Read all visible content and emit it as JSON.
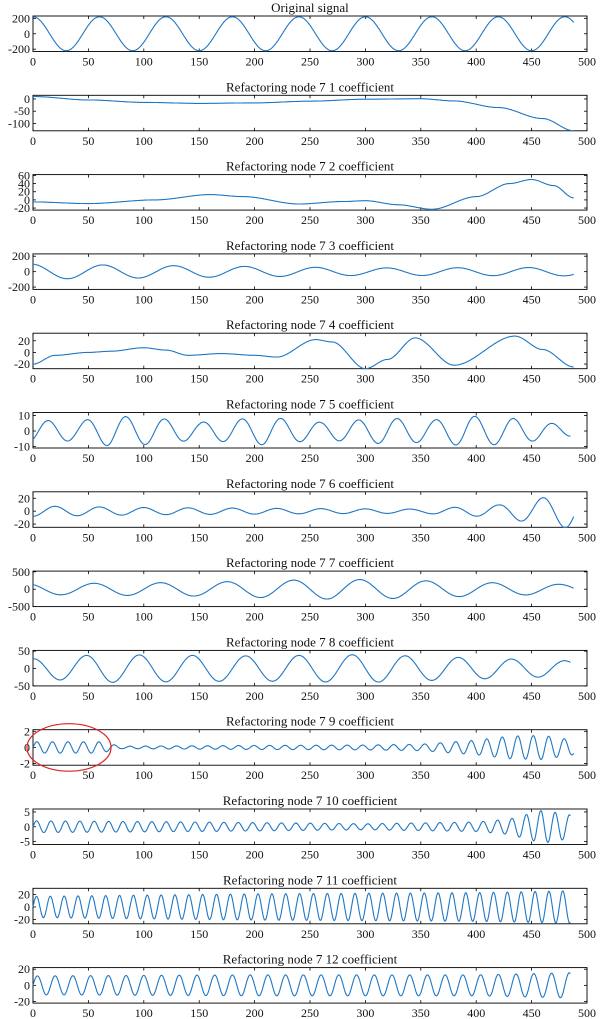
{
  "colors": {
    "line": "#1f77c4",
    "annotation": "#e02020",
    "axis": "#000000"
  },
  "chart_data": [
    {
      "type": "line",
      "title": "Original signal",
      "xlim": [
        0,
        500
      ],
      "xticks": [
        0,
        50,
        100,
        150,
        200,
        250,
        300,
        350,
        400,
        450,
        500
      ],
      "yticks": [
        200,
        0,
        -200
      ],
      "ylim": [
        -230,
        230
      ],
      "series": [
        {
          "x_end": 488,
          "components": [
            [
              220,
              60,
              0,
              -15
            ]
          ]
        }
      ]
    },
    {
      "type": "line",
      "title": "Refactoring node 7 1 coefficient",
      "xlim": [
        0,
        500
      ],
      "xticks": [
        0,
        50,
        100,
        150,
        200,
        250,
        300,
        350,
        400,
        450,
        500
      ],
      "yticks": [
        0,
        -50,
        -100
      ],
      "ylim": [
        -130,
        15
      ],
      "series": [
        {
          "x_end": 488,
          "points": [
            [
              0,
              10
            ],
            [
              50,
              -4
            ],
            [
              100,
              -14
            ],
            [
              150,
              -18
            ],
            [
              200,
              -16
            ],
            [
              250,
              -9
            ],
            [
              300,
              -1
            ],
            [
              350,
              1
            ],
            [
              380,
              -8
            ],
            [
              420,
              -35
            ],
            [
              460,
              -80
            ],
            [
              488,
              -130
            ]
          ]
        }
      ]
    },
    {
      "type": "line",
      "title": "Refactoring node 7 2 coefficient",
      "xlim": [
        0,
        500
      ],
      "xticks": [
        0,
        50,
        100,
        150,
        200,
        250,
        300,
        350,
        400,
        450,
        500
      ],
      "yticks": [
        60,
        40,
        20,
        0,
        -20
      ],
      "ylim": [
        -25,
        62
      ],
      "series": [
        {
          "x_end": 488,
          "points": [
            [
              0,
              -5
            ],
            [
              50,
              -9
            ],
            [
              110,
              0
            ],
            [
              160,
              13
            ],
            [
              190,
              8
            ],
            [
              240,
              -10
            ],
            [
              280,
              -4
            ],
            [
              300,
              -2
            ],
            [
              330,
              -12
            ],
            [
              360,
              -23
            ],
            [
              400,
              8
            ],
            [
              430,
              40
            ],
            [
              450,
              50
            ],
            [
              470,
              35
            ],
            [
              488,
              5
            ]
          ]
        }
      ]
    },
    {
      "type": "line",
      "title": "Refactoring node 7 3 coefficient",
      "xlim": [
        0,
        500
      ],
      "xticks": [
        0,
        50,
        100,
        150,
        200,
        250,
        300,
        350,
        400,
        450,
        500
      ],
      "yticks": [
        200,
        0,
        -200
      ],
      "ylim": [
        -230,
        230
      ],
      "series": [
        {
          "x_end": 488,
          "components": [
            [
              130,
              64,
              0,
              -20
            ],
            [
              40,
              64,
              0,
              0
            ]
          ],
          "envelope": [
            [
              0,
              0.8
            ],
            [
              200,
              0.55
            ],
            [
              300,
              0.4
            ],
            [
              488,
              0.45
            ]
          ]
        }
      ]
    },
    {
      "type": "line",
      "title": "Refactoring node 7 4 coefficient",
      "xlim": [
        0,
        500
      ],
      "xticks": [
        0,
        50,
        100,
        150,
        200,
        250,
        300,
        350,
        400,
        450,
        500
      ],
      "yticks": [
        20,
        0,
        -20
      ],
      "ylim": [
        -28,
        33
      ],
      "series": [
        {
          "x_end": 488,
          "points": [
            [
              0,
              -20
            ],
            [
              20,
              -5
            ],
            [
              50,
              0
            ],
            [
              70,
              2
            ],
            [
              100,
              8
            ],
            [
              120,
              4
            ],
            [
              140,
              -5
            ],
            [
              170,
              -2
            ],
            [
              200,
              -5
            ],
            [
              220,
              -8
            ],
            [
              255,
              22
            ],
            [
              270,
              18
            ],
            [
              300,
              -28
            ],
            [
              320,
              -12
            ],
            [
              345,
              25
            ],
            [
              380,
              -22
            ],
            [
              435,
              28
            ],
            [
              460,
              5
            ],
            [
              488,
              -25
            ]
          ]
        }
      ]
    },
    {
      "type": "line",
      "title": "Refactoring node 7 5 coefficient",
      "xlim": [
        0,
        500
      ],
      "xticks": [
        0,
        50,
        100,
        150,
        200,
        250,
        300,
        350,
        400,
        450,
        500
      ],
      "yticks": [
        10,
        0,
        -10
      ],
      "ylim": [
        -11,
        12
      ],
      "series": [
        {
          "x_end": 485,
          "components": [
            [
              7,
              35,
              0,
              5
            ]
          ],
          "envelope": [
            [
              0,
              1.0
            ],
            [
              40,
              0.9
            ],
            [
              70,
              1.4
            ],
            [
              110,
              1.2
            ],
            [
              150,
              0.8
            ],
            [
              210,
              1.3
            ],
            [
              260,
              0.8
            ],
            [
              320,
              1.2
            ],
            [
              360,
              1.0
            ],
            [
              390,
              1.4
            ],
            [
              430,
              1.2
            ],
            [
              485,
              0.5
            ]
          ]
        }
      ]
    },
    {
      "type": "line",
      "title": "Refactoring node 7 6 coefficient",
      "xlim": [
        0,
        500
      ],
      "xticks": [
        0,
        50,
        100,
        150,
        200,
        250,
        300,
        350,
        400,
        450,
        500
      ],
      "yticks": [
        20,
        0,
        -20
      ],
      "ylim": [
        -25,
        30
      ],
      "series": [
        {
          "x_end": 488,
          "components": [
            [
              8,
              40,
              0,
              10
            ]
          ],
          "envelope": [
            [
              0,
              1.0
            ],
            [
              100,
              0.7
            ],
            [
              250,
              0.5
            ],
            [
              350,
              0.4
            ],
            [
              420,
              1.2
            ],
            [
              460,
              2.6
            ],
            [
              488,
              3.4
            ]
          ]
        }
      ]
    },
    {
      "type": "line",
      "title": "Refactoring node 7 7 coefficient",
      "xlim": [
        0,
        500
      ],
      "xticks": [
        0,
        50,
        100,
        150,
        200,
        250,
        300,
        350,
        400,
        450,
        500
      ],
      "yticks": [
        500,
        0,
        -500
      ],
      "ylim": [
        -500,
        520
      ],
      "series": [
        {
          "x_end": 488,
          "components": [
            [
              220,
              60,
              0,
              -20
            ]
          ],
          "envelope": [
            [
              0,
              0.7
            ],
            [
              150,
              0.9
            ],
            [
              270,
              1.3
            ],
            [
              330,
              1.2
            ],
            [
              400,
              0.9
            ],
            [
              488,
              0.6
            ]
          ]
        }
      ]
    },
    {
      "type": "line",
      "title": "Refactoring node 7 8 coefficient",
      "xlim": [
        0,
        500
      ],
      "xticks": [
        0,
        50,
        100,
        150,
        200,
        250,
        300,
        350,
        400,
        450,
        500
      ],
      "yticks": [
        50,
        0,
        -50
      ],
      "ylim": [
        -50,
        52
      ],
      "series": [
        {
          "x_end": 485,
          "components": [
            [
              40,
              48,
              0,
              -12
            ]
          ],
          "envelope": [
            [
              0,
              0.7
            ],
            [
              60,
              1.0
            ],
            [
              200,
              0.9
            ],
            [
              300,
              1.0
            ],
            [
              485,
              0.55
            ]
          ]
        }
      ]
    },
    {
      "type": "line",
      "title": "Refactoring node 7 9 coefficient",
      "xlim": [
        0,
        500
      ],
      "xticks": [
        0,
        50,
        100,
        150,
        200,
        250,
        300,
        350,
        400,
        450,
        500
      ],
      "yticks": [
        2,
        0,
        -2
      ],
      "ylim": [
        -2.2,
        2.2
      ],
      "series": [
        {
          "x_end": 488,
          "components": [
            [
              1.0,
              14,
              0,
              0
            ]
          ],
          "envelope": [
            [
              0,
              0.7
            ],
            [
              60,
              0.7
            ],
            [
              80,
              0.15
            ],
            [
              200,
              0.25
            ],
            [
              300,
              0.3
            ],
            [
              350,
              0.4
            ],
            [
              400,
              0.9
            ],
            [
              430,
              1.4
            ],
            [
              460,
              1.5
            ],
            [
              488,
              0.9
            ]
          ]
        }
      ],
      "annotation": {
        "shape": "ellipse",
        "x_range": [
          0,
          65
        ]
      }
    },
    {
      "type": "line",
      "title": "Refactoring node 7 10 coefficient",
      "xlim": [
        0,
        500
      ],
      "xticks": [
        0,
        50,
        100,
        150,
        200,
        250,
        300,
        350,
        400,
        450,
        500
      ],
      "yticks": [
        5,
        0,
        -5
      ],
      "ylim": [
        -6,
        6
      ],
      "series": [
        {
          "x_end": 485,
          "components": [
            [
              2,
              13,
              0,
              0
            ]
          ],
          "envelope": [
            [
              0,
              1.0
            ],
            [
              150,
              0.8
            ],
            [
              300,
              0.5
            ],
            [
              400,
              0.8
            ],
            [
              430,
              1.3
            ],
            [
              460,
              2.8
            ],
            [
              485,
              2.0
            ]
          ]
        }
      ]
    },
    {
      "type": "line",
      "title": "Refactoring node 7 11 coefficient",
      "xlim": [
        0,
        500
      ],
      "xticks": [
        0,
        50,
        100,
        150,
        200,
        250,
        300,
        350,
        400,
        450,
        500
      ],
      "yticks": [
        20,
        0,
        -20
      ],
      "ylim": [
        -27,
        30
      ],
      "series": [
        {
          "x_end": 485,
          "components": [
            [
              20,
              12.5,
              0,
              0
            ]
          ],
          "envelope": [
            [
              0,
              0.85
            ],
            [
              200,
              1.05
            ],
            [
              400,
              1.15
            ],
            [
              485,
              1.3
            ]
          ]
        }
      ]
    },
    {
      "type": "line",
      "title": "Refactoring node 7 12 coefficient",
      "xlim": [
        0,
        500
      ],
      "xticks": [
        0,
        50,
        100,
        150,
        200,
        250,
        300,
        350,
        400,
        450,
        500
      ],
      "yticks": [
        20,
        0,
        -20
      ],
      "ylim": [
        -22,
        22
      ],
      "series": [
        {
          "x_end": 485,
          "components": [
            [
              13,
              16,
              0,
              0
            ]
          ],
          "envelope": [
            [
              0,
              0.9
            ],
            [
              200,
              1.0
            ],
            [
              400,
              1.0
            ],
            [
              485,
              1.2
            ]
          ]
        }
      ]
    }
  ]
}
